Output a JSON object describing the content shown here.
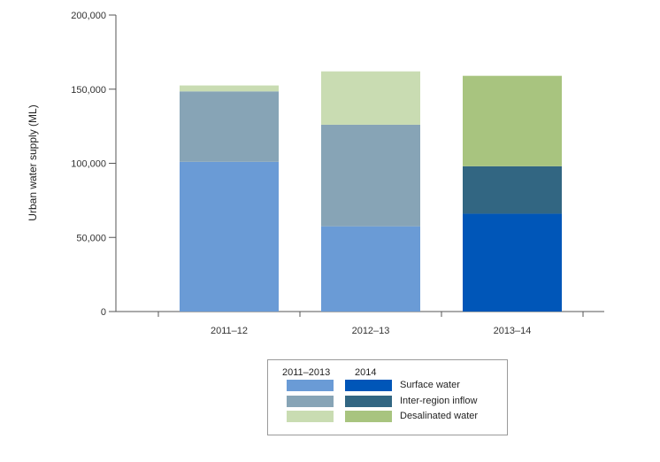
{
  "chart_data": {
    "type": "bar",
    "stacked": true,
    "categories": [
      "2011–12",
      "2012–13",
      "2013–14"
    ],
    "ylabel": "Urban water supply (ML)",
    "xlabel": "",
    "ylim": [
      0,
      200000
    ],
    "yticks": [
      0,
      50000,
      100000,
      150000,
      200000
    ],
    "ytick_labels": [
      "0",
      "50,000",
      "100,000",
      "150,000",
      "200,000"
    ],
    "grid": false,
    "legend_position": "bottom-center",
    "series": [
      {
        "name": "Surface water",
        "values": [
          101000,
          57500,
          66000
        ]
      },
      {
        "name": "Inter-region inflow",
        "values": [
          47500,
          68500,
          32000
        ]
      },
      {
        "name": "Desalinated water",
        "values": [
          4000,
          36000,
          61000
        ]
      }
    ],
    "colors": {
      "2011–2013": [
        "#6a9bd6",
        "#87a4b6",
        "#c9dcb2"
      ],
      "2014": [
        "#0056b8",
        "#326682",
        "#a8c47f"
      ]
    },
    "legend": {
      "col_1": "2011–2013",
      "col_2": "2014",
      "labels": [
        "Surface water",
        "Inter-region inflow",
        "Desalinated water"
      ]
    }
  }
}
